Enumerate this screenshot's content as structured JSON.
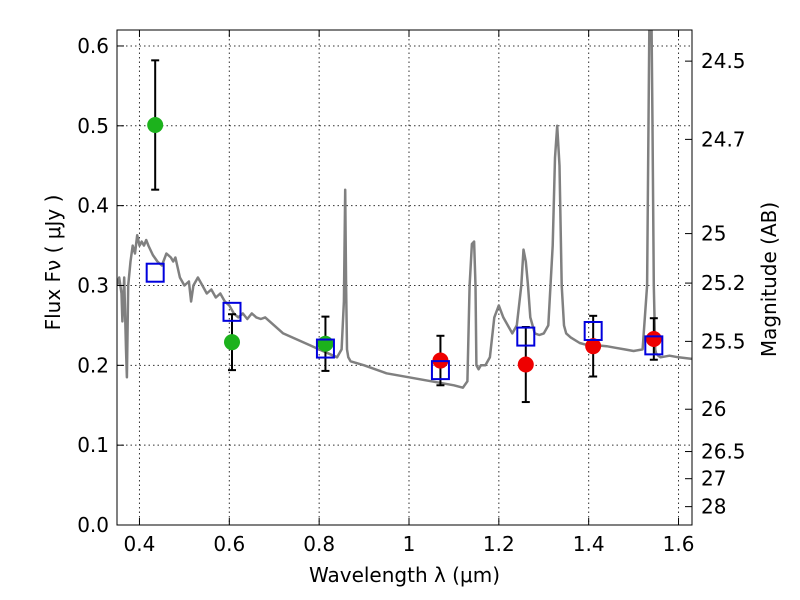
{
  "chart_data": {
    "type": "scatter",
    "xlabel": "Wavelength  λ (μm)",
    "ylabel": "Flux  Fν  ( μJy )",
    "ylabel_right": "Magnitude (AB)",
    "xlim": [
      0.35,
      1.63
    ],
    "ylim": [
      0.0,
      0.62
    ],
    "grid": true,
    "x_ticks": [
      0.4,
      0.6,
      0.8,
      1.0,
      1.2,
      1.4,
      1.6
    ],
    "x_tick_labels": [
      "0.4",
      "0.6",
      "0.8",
      "1",
      "1.2",
      "1.4",
      "1.6"
    ],
    "y_ticks": [
      0.0,
      0.1,
      0.2,
      0.3,
      0.4,
      0.5,
      0.6
    ],
    "y_tick_labels": [
      "0.0",
      "0.1",
      "0.2",
      "0.3",
      "0.4",
      "0.5",
      "0.6"
    ],
    "right_ticks": [
      {
        "flux": 0.581,
        "label": "24.5"
      },
      {
        "flux": 0.483,
        "label": "24.7"
      },
      {
        "flux": 0.365,
        "label": "25"
      },
      {
        "flux": 0.303,
        "label": "25.2"
      },
      {
        "flux": 0.23,
        "label": "25.5"
      },
      {
        "flux": 0.145,
        "label": "26"
      },
      {
        "flux": 0.092,
        "label": "26.5"
      },
      {
        "flux": 0.058,
        "label": "27"
      },
      {
        "flux": 0.023,
        "label": "28"
      }
    ],
    "colors": {
      "green": "#1cb21c",
      "red": "#ee0000",
      "blue": "#0000dd",
      "model": "#808080",
      "errorbar": "#000000"
    },
    "series": [
      {
        "marker": "circle",
        "color": "green",
        "points": [
          {
            "x": 0.435,
            "y": 0.501,
            "err": 0.081
          },
          {
            "x": 0.606,
            "y": 0.229,
            "err": 0.035
          },
          {
            "x": 0.814,
            "y": 0.227,
            "err": 0.034
          }
        ]
      },
      {
        "marker": "circle",
        "color": "red",
        "points": [
          {
            "x": 1.07,
            "y": 0.206,
            "err": 0.031
          },
          {
            "x": 1.26,
            "y": 0.201,
            "err": 0.047
          },
          {
            "x": 1.41,
            "y": 0.224,
            "err": 0.038
          },
          {
            "x": 1.545,
            "y": 0.233,
            "err": 0.026
          }
        ]
      },
      {
        "marker": "square",
        "color": "blue",
        "points": [
          {
            "x": 0.435,
            "y": 0.316
          },
          {
            "x": 0.606,
            "y": 0.267
          },
          {
            "x": 0.814,
            "y": 0.221
          },
          {
            "x": 1.07,
            "y": 0.194
          },
          {
            "x": 1.26,
            "y": 0.236
          },
          {
            "x": 1.41,
            "y": 0.243
          },
          {
            "x": 1.545,
            "y": 0.225
          }
        ]
      }
    ],
    "model_spectrum": {
      "x": [
        0.35,
        0.355,
        0.36,
        0.362,
        0.366,
        0.37,
        0.372,
        0.375,
        0.38,
        0.385,
        0.39,
        0.395,
        0.4,
        0.405,
        0.41,
        0.415,
        0.42,
        0.43,
        0.44,
        0.45,
        0.46,
        0.47,
        0.475,
        0.48,
        0.49,
        0.5,
        0.51,
        0.515,
        0.52,
        0.53,
        0.54,
        0.55,
        0.56,
        0.57,
        0.58,
        0.59,
        0.6,
        0.61,
        0.62,
        0.63,
        0.64,
        0.65,
        0.66,
        0.67,
        0.68,
        0.7,
        0.72,
        0.74,
        0.76,
        0.78,
        0.8,
        0.82,
        0.84,
        0.85,
        0.855,
        0.858,
        0.86,
        0.862,
        0.865,
        0.87,
        0.9,
        0.95,
        1.0,
        1.05,
        1.1,
        1.12,
        1.13,
        1.135,
        1.14,
        1.145,
        1.148,
        1.15,
        1.155,
        1.16,
        1.17,
        1.18,
        1.19,
        1.2,
        1.21,
        1.22,
        1.23,
        1.24,
        1.25,
        1.255,
        1.26,
        1.265,
        1.27,
        1.28,
        1.29,
        1.3,
        1.31,
        1.32,
        1.325,
        1.33,
        1.335,
        1.34,
        1.345,
        1.35,
        1.36,
        1.38,
        1.4,
        1.42,
        1.44,
        1.46,
        1.48,
        1.5,
        1.52,
        1.53,
        1.535,
        1.54,
        1.542,
        1.545,
        1.548,
        1.55,
        1.555,
        1.56,
        1.58,
        1.6,
        1.63
      ],
      "y": [
        0.3,
        0.31,
        0.29,
        0.255,
        0.31,
        0.22,
        0.185,
        0.3,
        0.33,
        0.35,
        0.34,
        0.363,
        0.35,
        0.355,
        0.35,
        0.357,
        0.35,
        0.338,
        0.33,
        0.325,
        0.34,
        0.335,
        0.33,
        0.335,
        0.31,
        0.3,
        0.305,
        0.28,
        0.3,
        0.31,
        0.3,
        0.29,
        0.295,
        0.285,
        0.29,
        0.28,
        0.275,
        0.265,
        0.26,
        0.265,
        0.258,
        0.265,
        0.26,
        0.258,
        0.26,
        0.25,
        0.24,
        0.235,
        0.23,
        0.225,
        0.22,
        0.215,
        0.21,
        0.22,
        0.28,
        0.42,
        0.3,
        0.22,
        0.21,
        0.205,
        0.2,
        0.19,
        0.185,
        0.18,
        0.175,
        0.172,
        0.18,
        0.3,
        0.352,
        0.355,
        0.3,
        0.2,
        0.195,
        0.2,
        0.2,
        0.21,
        0.26,
        0.275,
        0.26,
        0.25,
        0.24,
        0.25,
        0.3,
        0.345,
        0.33,
        0.3,
        0.26,
        0.24,
        0.238,
        0.24,
        0.25,
        0.35,
        0.46,
        0.5,
        0.45,
        0.3,
        0.25,
        0.24,
        0.235,
        0.228,
        0.225,
        0.225,
        0.224,
        0.222,
        0.22,
        0.218,
        0.22,
        0.3,
        0.62,
        0.62,
        0.5,
        0.3,
        0.22,
        0.215,
        0.212,
        0.21,
        0.212,
        0.21,
        0.208
      ]
    }
  }
}
